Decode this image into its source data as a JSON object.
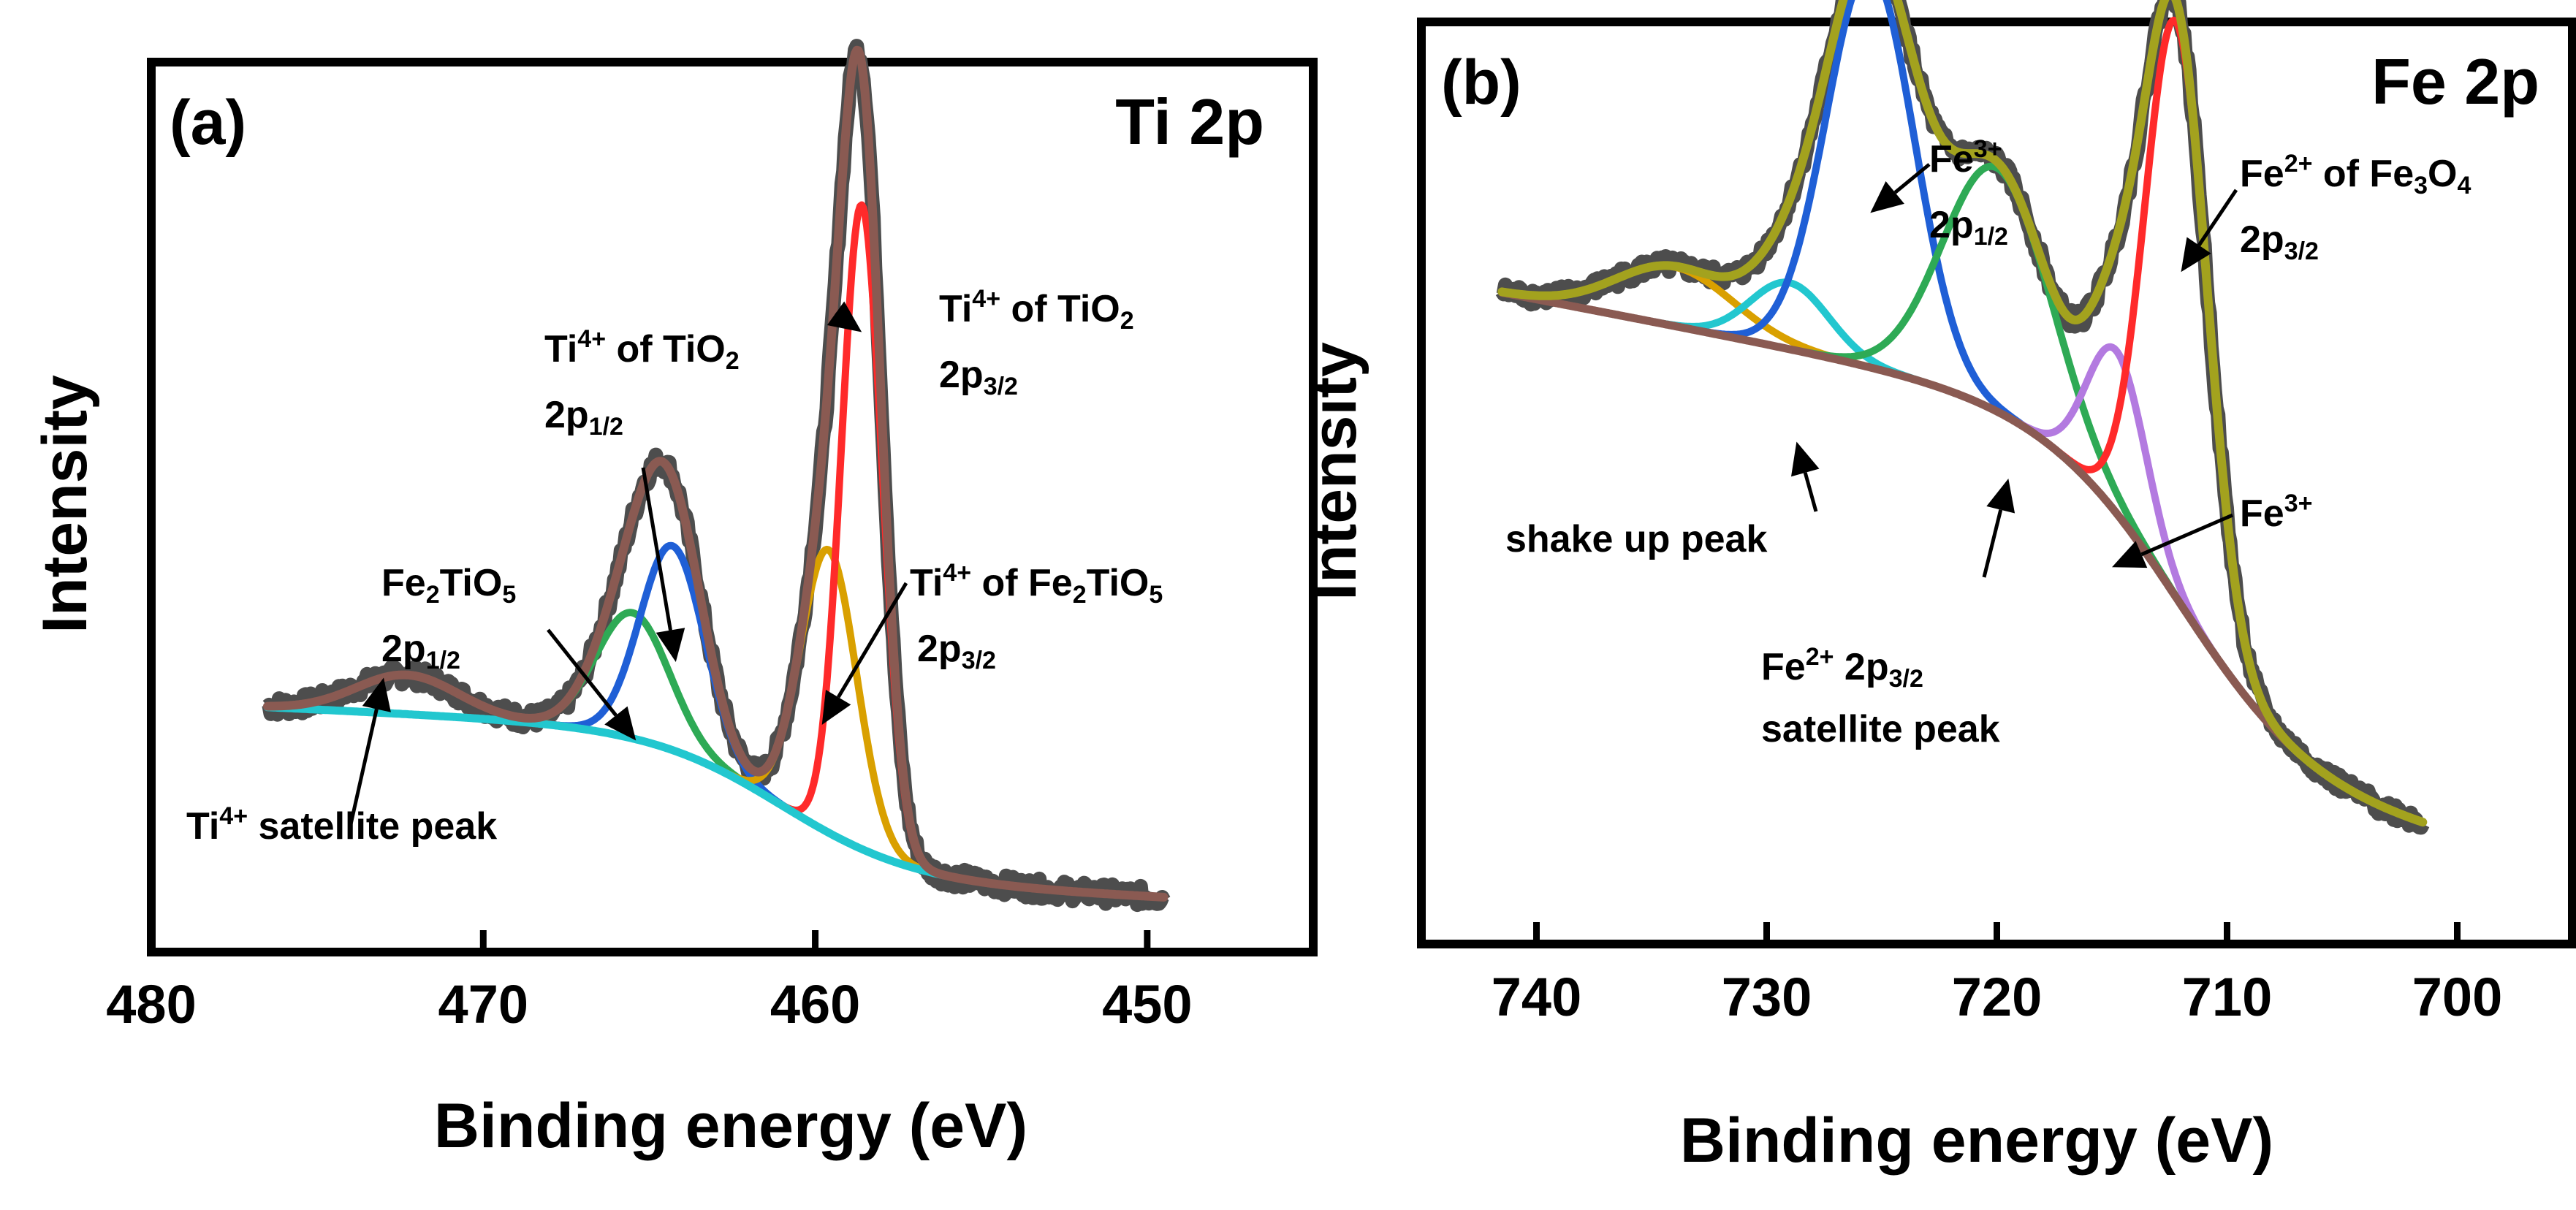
{
  "chart_data": [
    {
      "type": "line",
      "panel_label": "(a)",
      "title": "Ti 2p",
      "xlabel": "Binding energy (eV)",
      "ylabel": "Intensity",
      "xlim": [
        480,
        445
      ],
      "ylim": [
        -0.05,
        1.05
      ],
      "x_ticks": [
        "480",
        "470",
        "460",
        "450"
      ],
      "x_tick_values": [
        480,
        470,
        460,
        450
      ],
      "x_range": [
        476.5,
        449.5
      ],
      "colors": {
        "raw": "#4d4d4d",
        "envelope": "#8a5a52",
        "baseline": "#22c7cf",
        "peak_458_6": "#ff2a2a",
        "peak_459_6": "#d9a000",
        "peak_464_3": "#1f5fd6",
        "peak_465_5": "#2eaa55"
      },
      "baseline": {
        "left_x": 476.5,
        "left_y": 0.25,
        "right_x": 449.5,
        "right_y": 0.02,
        "step_center": 461,
        "step_width": 2.0,
        "linear_slope": 0.002
      },
      "series": [
        {
          "id": "peak_472_3",
          "label": "Ti4+ satellite peak",
          "center": 472.3,
          "height": 0.05,
          "fwhm": 3.6,
          "color": "#8a5a52"
        },
        {
          "id": "peak_465_5",
          "label": "Fe2TiO5 2p1/2",
          "center": 465.5,
          "height": 0.16,
          "fwhm": 2.6,
          "color": "#2eaa55"
        },
        {
          "id": "peak_464_3",
          "label": "Ti4+ of TiO2 2p1/2",
          "center": 464.3,
          "height": 0.26,
          "fwhm": 2.3,
          "color": "#1f5fd6"
        },
        {
          "id": "peak_459_6",
          "label": "Ti4+ of Fe2TiO5 2p3/2",
          "center": 459.6,
          "height": 0.36,
          "fwhm": 2.0,
          "color": "#d9a000"
        },
        {
          "id": "peak_458_6",
          "label": "Ti4+ of TiO2 2p3/2",
          "center": 458.6,
          "height": 0.82,
          "fwhm": 1.45,
          "color": "#ff2a2a"
        }
      ],
      "annotations": [
        {
          "base": "Ti",
          "sup": "4+",
          "text": " of TiO",
          "sub": "2",
          "line2": "2p",
          "line2_sub": "3/2",
          "points_to": [
            458.6,
            0.74
          ]
        },
        {
          "base": "Ti",
          "sup": "4+",
          "text": " of TiO",
          "sub": "2",
          "line2": "2p",
          "line2_sub": "1/2",
          "points_to": [
            464.2,
            0.32
          ]
        },
        {
          "base": "Ti",
          "sup": "4+",
          "text": " of Fe",
          "sub": "2",
          "text2": "TiO",
          "sub2": "5",
          "line2": "2p",
          "line2_sub": "3/2",
          "points_to": [
            459.8,
            0.24
          ]
        },
        {
          "base": "Fe",
          "sub": "2",
          "text": "TiO",
          "sub2": "5",
          "line2": "2p",
          "line2_sub": "1/2",
          "points_to": [
            465.4,
            0.22
          ]
        },
        {
          "base": "Ti",
          "sup": "4+",
          "text": " satellite peak",
          "points_to": [
            473.0,
            0.3
          ]
        }
      ]
    },
    {
      "type": "line",
      "panel_label": "(b)",
      "title": "Fe 2p",
      "xlabel": "Binding energy (eV)",
      "ylabel": "Intensity",
      "xlim": [
        745,
        695
      ],
      "ylim": [
        -0.05,
        1.05
      ],
      "x_ticks": [
        "740",
        "730",
        "720",
        "710",
        "700"
      ],
      "x_tick_values": [
        740,
        730,
        720,
        710,
        700
      ],
      "x_range": [
        741.5,
        701.5
      ],
      "colors": {
        "raw": "#4d4d4d",
        "envelope": "#a3a21e",
        "baseline": "#8a5a52",
        "peak_734": "#d9a000",
        "peak_729": "#22c7cf",
        "peak_725_5": "#1f5fd6",
        "peak_720": "#2eaa55",
        "peak_714_8": "#b37ae0",
        "peak_712_2": "#ff2a2a"
      },
      "baseline": {
        "left_x": 741.5,
        "left_y": 0.62,
        "right_x": 701.5,
        "right_y": 0.02,
        "step_center": 712,
        "step_width": 3.0,
        "linear_slope": 0.006
      },
      "series": [
        {
          "id": "peak_734",
          "label": "Fe2+ satellite",
          "center": 734.0,
          "height": 0.08,
          "fwhm": 6.0,
          "color": "#d9a000"
        },
        {
          "id": "peak_729",
          "label": "shake up peak",
          "center": 729.0,
          "height": 0.09,
          "fwhm": 4.0,
          "color": "#22c7cf"
        },
        {
          "id": "peak_725_5",
          "label": "Fe3+ 2p1/2",
          "center": 725.5,
          "height": 0.54,
          "fwhm": 4.5,
          "color": "#1f5fd6"
        },
        {
          "id": "peak_720",
          "label": "Fe2+ 2p3/2 satellite peak",
          "center": 720.0,
          "height": 0.33,
          "fwhm": 5.5,
          "color": "#2eaa55"
        },
        {
          "id": "peak_714_8",
          "label": "Fe3+",
          "center": 714.8,
          "height": 0.22,
          "fwhm": 3.0,
          "color": "#b37ae0"
        },
        {
          "id": "peak_712_2",
          "label": "Fe2+ of Fe3O4 2p3/2",
          "center": 712.2,
          "height": 0.78,
          "fwhm": 3.2,
          "color": "#ff2a2a"
        }
      ],
      "annotations": [
        {
          "base": "Fe",
          "sup": "3+",
          "line2": "2p",
          "line2_sub": "1/2",
          "points_to": [
            725.5,
            0.86
          ]
        },
        {
          "base": "Fe",
          "sup": "2+",
          "text": " of Fe",
          "sub": "3",
          "text2": "O",
          "sub2": "4",
          "line2": "2p",
          "line2_sub": "3/2",
          "points_to": [
            712.0,
            0.78
          ]
        },
        {
          "text": "shake up peak",
          "points_to": [
            728.7,
            0.55
          ]
        },
        {
          "base": "Fe",
          "sup": "2+",
          "text": "  2p",
          "sub": "3/2",
          "line2": "satellite peak",
          "points_to": [
            719.5,
            0.5
          ]
        },
        {
          "base": "Fe",
          "sup": "3+",
          "points_to": [
            715.0,
            0.38
          ]
        }
      ]
    }
  ]
}
